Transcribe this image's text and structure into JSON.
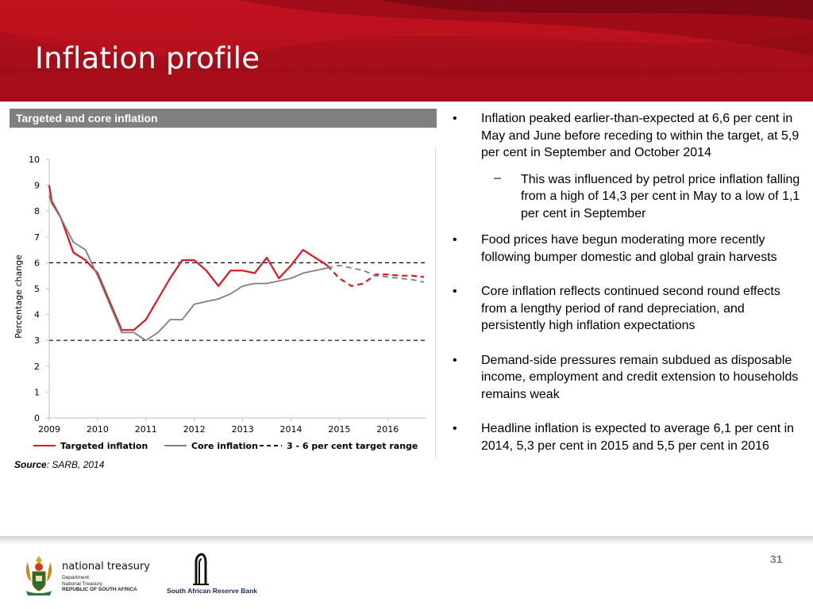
{
  "slide": {
    "title": "Inflation profile",
    "page_number": "31"
  },
  "chart_panel": {
    "header": "Targeted and core inflation",
    "source_label": "Source",
    "source_rest": ": SARB,  2014"
  },
  "chart_data": {
    "type": "line",
    "ylabel": "Percentage change",
    "xlabel": "",
    "ylim": [
      0,
      10
    ],
    "xlim": [
      2009,
      2016.8
    ],
    "yticks": [
      0,
      1,
      2,
      3,
      4,
      5,
      6,
      7,
      8,
      9,
      10
    ],
    "xticks": [
      2009,
      2010,
      2011,
      2012,
      2013,
      2014,
      2015,
      2016
    ],
    "grid": false,
    "legend_position": "bottom",
    "series": [
      {
        "name": "Targeted inflation",
        "color": "#e3141f",
        "style": "solid",
        "x": [
          2009.0,
          2009.05,
          2009.25,
          2009.5,
          2009.75,
          2010.0,
          2010.25,
          2010.5,
          2010.75,
          2011.0,
          2011.25,
          2011.5,
          2011.75,
          2012.0,
          2012.25,
          2012.5,
          2012.75,
          2013.0,
          2013.25,
          2013.5,
          2013.75,
          2014.0,
          2014.25,
          2014.5,
          2014.75
        ],
        "values": [
          9.0,
          8.4,
          7.7,
          6.4,
          6.1,
          5.6,
          4.5,
          3.4,
          3.4,
          3.8,
          4.6,
          5.4,
          6.1,
          6.1,
          5.7,
          5.1,
          5.7,
          5.7,
          5.6,
          6.2,
          5.4,
          5.9,
          6.5,
          6.2,
          5.9
        ]
      },
      {
        "name": "Targeted inflation (forecast)",
        "color": "#e3141f",
        "style": "dashed",
        "x": [
          2014.75,
          2015.0,
          2015.25,
          2015.5,
          2015.75,
          2016.0,
          2016.25,
          2016.5,
          2016.75
        ],
        "values": [
          5.9,
          5.4,
          5.1,
          5.2,
          5.55,
          5.55,
          5.5,
          5.5,
          5.45
        ]
      },
      {
        "name": "Core inflation",
        "color": "#7f7f7f",
        "style": "solid",
        "x": [
          2009.0,
          2009.05,
          2009.25,
          2009.5,
          2009.75,
          2010.0,
          2010.25,
          2010.5,
          2010.75,
          2011.0,
          2011.25,
          2011.5,
          2011.75,
          2012.0,
          2012.25,
          2012.5,
          2012.75,
          2013.0,
          2013.25,
          2013.5,
          2013.75,
          2014.0,
          2014.25,
          2014.5,
          2014.75
        ],
        "values": [
          8.6,
          8.3,
          7.7,
          6.8,
          6.5,
          5.5,
          4.4,
          3.3,
          3.3,
          3.0,
          3.3,
          3.8,
          3.8,
          4.4,
          4.5,
          4.6,
          4.8,
          5.1,
          5.2,
          5.2,
          5.3,
          5.4,
          5.6,
          5.7,
          5.8
        ]
      },
      {
        "name": "Core inflation (forecast)",
        "color": "#7f7f7f",
        "style": "dashed",
        "x": [
          2014.75,
          2015.0,
          2015.25,
          2015.5,
          2015.75,
          2016.0,
          2016.25,
          2016.5,
          2016.75
        ],
        "values": [
          5.8,
          5.9,
          5.8,
          5.7,
          5.5,
          5.45,
          5.4,
          5.35,
          5.25
        ]
      }
    ],
    "target_range": {
      "name": "3 - 6 per cent target range",
      "lower": 3,
      "upper": 6,
      "color": "#000000"
    },
    "legend": [
      "Targeted inflation",
      "Core inflation",
      "3 - 6 per cent target range"
    ]
  },
  "bullets": [
    {
      "text": "Inflation peaked earlier-than-expected at 6,6 per cent in May and June before receding to within the target, at 5,9 per cent in September and October 2014"
    },
    {
      "text": "This was influenced by petrol price inflation falling from a high of 14,3 per cent in May to a low of 1,1 per cent in September",
      "sub": true
    },
    {
      "text": "Food prices have begun moderating more recently following bumper domestic and global grain harvests"
    },
    {
      "text": "Core inflation reflects continued second round effects from a lengthy period of rand depreciation, and persistently high inflation expectations"
    },
    {
      "text": "Demand-side pressures remain subdued as disposable income, employment and credit extension to households remains weak"
    },
    {
      "text": "Headline inflation is expected to average 6,1 per cent in 2014, 5,3 per cent in 2015 and 5,5 per cent in 2016"
    }
  ],
  "bullet_glyph": "•",
  "sub_glyph": "–",
  "footer": {
    "nt_name": "national treasury",
    "nt_line1": "Department:",
    "nt_line2": "National Treasury",
    "nt_line3": "REPUBLIC OF SOUTH AFRICA",
    "sarb_name": "South African Reserve Bank"
  }
}
